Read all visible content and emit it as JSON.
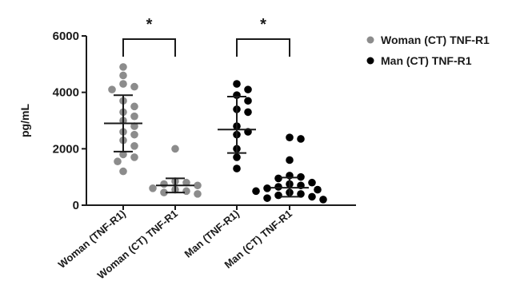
{
  "chart_data": {
    "type": "scatter",
    "title": "",
    "ylabel": "pg/mL",
    "xlabel": "",
    "ylim": [
      0,
      6000
    ],
    "yticks": [
      0,
      2000,
      4000,
      6000
    ],
    "grid": false,
    "legend_position": "top-right",
    "categories": [
      "Woman (TNF-R1)",
      "Woman (CT) TNF-R1",
      "Man (TNF-R1)",
      "Man (CT) TNF-R1"
    ],
    "legend": [
      {
        "label": "Woman (CT) TNF-R1",
        "color": "#8c8c8c"
      },
      {
        "label": "Man (CT) TNF-R1",
        "color": "#000000"
      }
    ],
    "series": [
      {
        "category": "Woman (TNF-R1)",
        "color": "#8c8c8c",
        "mean": 2900,
        "sd_low": 1900,
        "sd_high": 3900,
        "values": [
          4900,
          4600,
          4300,
          4200,
          4100,
          3700,
          3500,
          3300,
          3150,
          3000,
          2800,
          2600,
          2500,
          2300,
          2100,
          1800,
          1700,
          1550,
          1200
        ]
      },
      {
        "category": "Woman (CT) TNF-R1",
        "color": "#8c8c8c",
        "mean": 700,
        "sd_low": 450,
        "sd_high": 950,
        "values": [
          2000,
          850,
          800,
          750,
          700,
          600,
          550,
          500,
          450,
          400
        ]
      },
      {
        "category": "Man (TNF-R1)",
        "color": "#000000",
        "mean": 2680,
        "sd_low": 1850,
        "sd_high": 3850,
        "values": [
          4300,
          4100,
          3900,
          3700,
          3400,
          3300,
          2800,
          2600,
          2500,
          2000,
          1700,
          1300
        ]
      },
      {
        "category": "Man (CT) TNF-R1",
        "color": "#000000",
        "mean": 620,
        "sd_low": 300,
        "sd_high": 980,
        "values": [
          2400,
          2350,
          1600,
          1050,
          1000,
          950,
          800,
          750,
          700,
          650,
          600,
          550,
          500,
          450,
          400,
          350,
          300,
          250,
          200
        ]
      }
    ],
    "significance": [
      {
        "between": [
          0,
          1
        ],
        "label": "*",
        "at_value": 6000
      },
      {
        "between": [
          2,
          3
        ],
        "label": "*",
        "at_value": 6000
      }
    ]
  }
}
